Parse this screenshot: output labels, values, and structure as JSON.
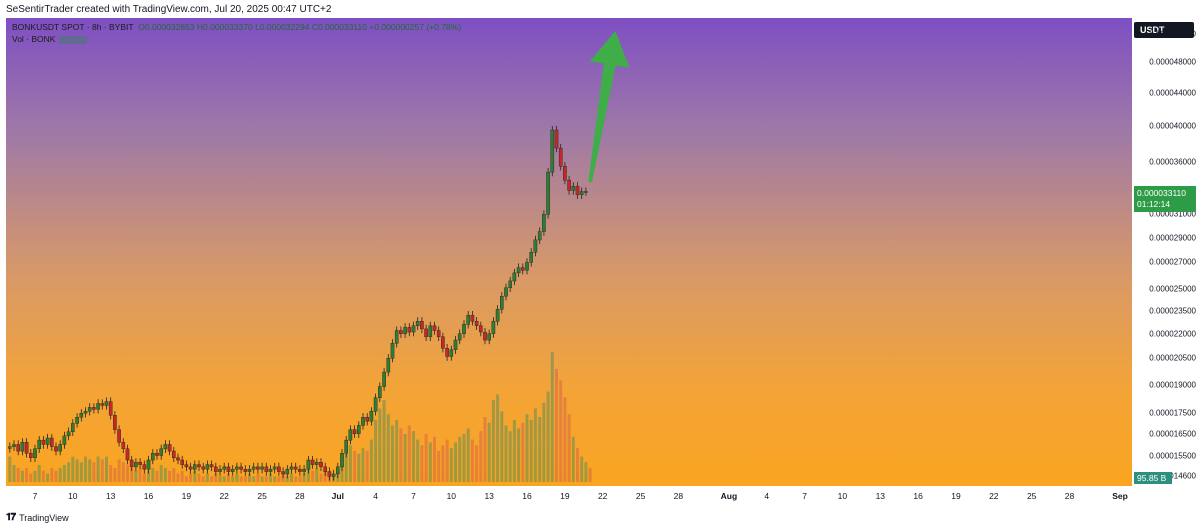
{
  "caption": "SeSentirTrader created with TradingView.com, Jul 20, 2025 00:47 UTC+2",
  "legend": {
    "symbol": "BONKUSDT SPOT · 8h · BYBIT",
    "open": "O0.000032853",
    "high": "H0.000033370",
    "low": "L0.000032294",
    "close": "C0.000033110",
    "change": "+0.000000257 (+0.78%)",
    "volume_label": "Vol · BONK"
  },
  "currency": "USDT",
  "price_tag": {
    "price": "0.000033110",
    "countdown": "01:12:14"
  },
  "volume_tag": "95.85 B",
  "footer": {
    "brand": "TradingView"
  },
  "colors": {
    "up": "#2e7d32",
    "down": "#c62828",
    "arrow": "#3fae49",
    "price_tag": "#2e9b46"
  },
  "icons": {
    "logo": "tradingview-logo-icon"
  },
  "chart_data": {
    "type": "candlestick",
    "timeframe": "8h",
    "y_scale": "log",
    "ylim": [
      1.42e-05,
      5.45e-05
    ],
    "y_ticks": [
      "0.000052000",
      "0.000048000",
      "0.000044000",
      "0.000040000",
      "0.000036000",
      "0.000031000",
      "0.000029000",
      "0.000027000",
      "0.000025000",
      "0.000023500",
      "0.000022000",
      "0.000020500",
      "0.000019000",
      "0.000017500",
      "0.000016500",
      "0.000015500",
      "0.000014600"
    ],
    "x_ticks": [
      {
        "label": "7",
        "date": "2025-06-07"
      },
      {
        "label": "10",
        "date": "2025-06-10"
      },
      {
        "label": "13",
        "date": "2025-06-13"
      },
      {
        "label": "16",
        "date": "2025-06-16"
      },
      {
        "label": "19",
        "date": "2025-06-19"
      },
      {
        "label": "22",
        "date": "2025-06-22"
      },
      {
        "label": "25",
        "date": "2025-06-25"
      },
      {
        "label": "28",
        "date": "2025-06-28"
      },
      {
        "label": "Jul",
        "date": "2025-07-01"
      },
      {
        "label": "4",
        "date": "2025-07-04"
      },
      {
        "label": "7",
        "date": "2025-07-07"
      },
      {
        "label": "10",
        "date": "2025-07-10"
      },
      {
        "label": "13",
        "date": "2025-07-13"
      },
      {
        "label": "16",
        "date": "2025-07-16"
      },
      {
        "label": "19",
        "date": "2025-07-19"
      },
      {
        "label": "22",
        "date": "2025-07-22"
      },
      {
        "label": "25",
        "date": "2025-07-25"
      },
      {
        "label": "28",
        "date": "2025-07-28"
      },
      {
        "label": "Aug",
        "date": "2025-08-01"
      },
      {
        "label": "4",
        "date": "2025-08-04"
      },
      {
        "label": "7",
        "date": "2025-08-07"
      },
      {
        "label": "10",
        "date": "2025-08-10"
      },
      {
        "label": "13",
        "date": "2025-08-13"
      },
      {
        "label": "16",
        "date": "2025-08-16"
      },
      {
        "label": "19",
        "date": "2025-08-19"
      },
      {
        "label": "22",
        "date": "2025-08-22"
      },
      {
        "label": "25",
        "date": "2025-08-25"
      },
      {
        "label": "28",
        "date": "2025-08-28"
      },
      {
        "label": "Sep",
        "date": "2025-09-01"
      }
    ],
    "closes": [
      1.59e-05,
      1.6e-05,
      1.57e-05,
      1.61e-05,
      1.56e-05,
      1.54e-05,
      1.58e-05,
      1.62e-05,
      1.6e-05,
      1.63e-05,
      1.59e-05,
      1.57e-05,
      1.6e-05,
      1.64e-05,
      1.66e-05,
      1.7e-05,
      1.73e-05,
      1.75e-05,
      1.76e-05,
      1.78e-05,
      1.77e-05,
      1.8e-05,
      1.79e-05,
      1.81e-05,
      1.74e-05,
      1.67e-05,
      1.61e-05,
      1.58e-05,
      1.53e-05,
      1.5e-05,
      1.52e-05,
      1.51e-05,
      1.49e-05,
      1.53e-05,
      1.56e-05,
      1.55e-05,
      1.58e-05,
      1.6e-05,
      1.57e-05,
      1.54e-05,
      1.53e-05,
      1.51e-05,
      1.5e-05,
      1.49e-05,
      1.51e-05,
      1.5e-05,
      1.49e-05,
      1.51e-05,
      1.5e-05,
      1.48e-05,
      1.49e-05,
      1.5e-05,
      1.48e-05,
      1.49e-05,
      1.5e-05,
      1.49e-05,
      1.48e-05,
      1.49e-05,
      1.5e-05,
      1.49e-05,
      1.5e-05,
      1.48e-05,
      1.49e-05,
      1.5e-05,
      1.48e-05,
      1.47e-05,
      1.49e-05,
      1.5e-05,
      1.49e-05,
      1.48e-05,
      1.49e-05,
      1.53e-05,
      1.51e-05,
      1.52e-05,
      1.5e-05,
      1.48e-05,
      1.46e-05,
      1.47e-05,
      1.5e-05,
      1.56e-05,
      1.62e-05,
      1.67e-05,
      1.65e-05,
      1.69e-05,
      1.73e-05,
      1.71e-05,
      1.76e-05,
      1.83e-05,
      1.89e-05,
      1.97e-05,
      2.05e-05,
      2.14e-05,
      2.22e-05,
      2.2e-05,
      2.24e-05,
      2.21e-05,
      2.25e-05,
      2.28e-05,
      2.23e-05,
      2.18e-05,
      2.25e-05,
      2.22e-05,
      2.18e-05,
      2.11e-05,
      2.06e-05,
      2.1e-05,
      2.16e-05,
      2.2e-05,
      2.26e-05,
      2.32e-05,
      2.28e-05,
      2.25e-05,
      2.21e-05,
      2.16e-05,
      2.2e-05,
      2.28e-05,
      2.36e-05,
      2.45e-05,
      2.51e-05,
      2.56e-05,
      2.62e-05,
      2.66e-05,
      2.64e-05,
      2.7e-05,
      2.78e-05,
      2.88e-05,
      2.95e-05,
      3.1e-05,
      3.5e-05,
      3.95e-05,
      3.75e-05,
      3.56e-05,
      3.42e-05,
      3.32e-05,
      3.36e-05,
      3.28e-05,
      3.31e-05,
      3.31e-05
    ],
    "volumes": [
      0.9,
      0.6,
      0.5,
      0.4,
      0.5,
      0.3,
      0.4,
      0.6,
      0.4,
      0.3,
      0.5,
      0.4,
      0.5,
      0.6,
      0.7,
      0.9,
      0.8,
      0.7,
      0.9,
      0.8,
      0.7,
      0.9,
      0.8,
      0.9,
      0.6,
      0.5,
      0.8,
      0.7,
      0.6,
      0.5,
      0.4,
      0.5,
      0.3,
      0.4,
      0.5,
      0.4,
      0.6,
      0.5,
      0.4,
      0.5,
      0.3,
      0.4,
      0.2,
      0.3,
      0.4,
      0.3,
      0.2,
      0.3,
      0.2,
      0.3,
      0.2,
      0.2,
      0.3,
      0.2,
      0.3,
      0.2,
      0.2,
      0.3,
      0.2,
      0.3,
      0.2,
      0.2,
      0.3,
      0.2,
      0.2,
      0.3,
      0.2,
      0.3,
      0.2,
      0.2,
      0.3,
      0.5,
      0.4,
      0.5,
      0.3,
      0.4,
      0.3,
      0.3,
      0.4,
      0.8,
      1.0,
      1.3,
      1.1,
      1.0,
      1.2,
      1.1,
      1.5,
      2.2,
      2.6,
      2.9,
      2.4,
      2.0,
      2.2,
      1.9,
      1.7,
      2.0,
      1.8,
      1.5,
      1.3,
      1.7,
      1.4,
      1.6,
      1.1,
      1.3,
      1.5,
      1.2,
      1.4,
      1.6,
      1.7,
      1.9,
      1.5,
      1.3,
      1.8,
      2.3,
      2.1,
      2.9,
      3.1,
      2.5,
      2.0,
      1.8,
      2.2,
      1.9,
      2.1,
      2.4,
      2.2,
      2.6,
      2.3,
      2.8,
      3.2,
      4.6,
      4.0,
      3.6,
      3.0,
      2.4,
      1.6,
      1.2,
      0.9,
      0.7,
      0.5
    ],
    "volume_max": 4.6,
    "projection_arrow": {
      "from": {
        "date": "2025-07-21",
        "price": 3.4e-05
      },
      "to": {
        "date": "2025-07-23",
        "price": 5.25e-05
      }
    }
  }
}
